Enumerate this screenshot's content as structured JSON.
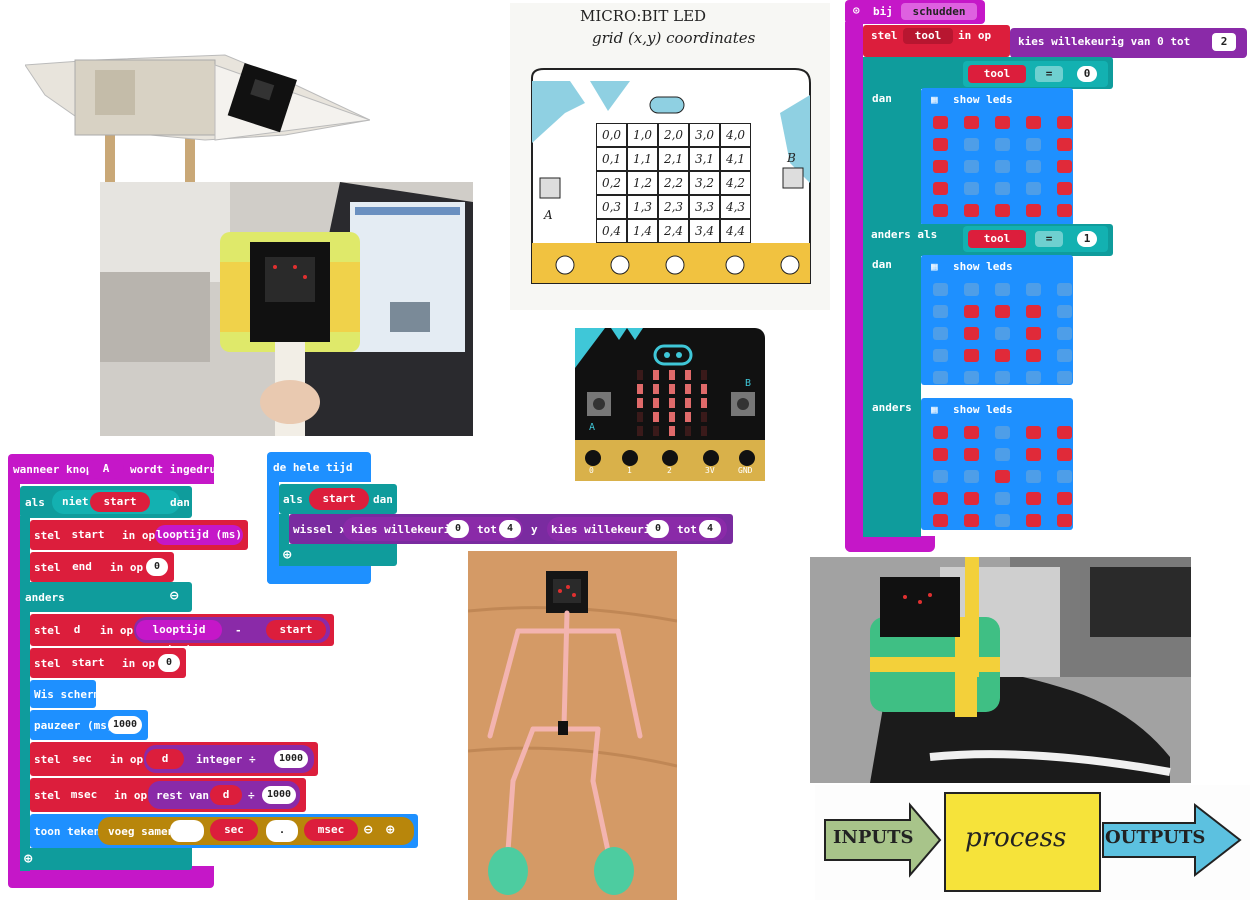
{
  "sketch_grid": {
    "title_line1": "MICRO:BIT LED",
    "title_line2": "grid (x,y) coordinates",
    "cells": [
      [
        "0,0",
        "1,0",
        "2,0",
        "3,0",
        "4,0"
      ],
      [
        "0,1",
        "1,1",
        "2,1",
        "3,1",
        "4,1"
      ],
      [
        "0,2",
        "1,2",
        "2,2",
        "3,2",
        "4,2"
      ],
      [
        "0,3",
        "1,3",
        "2,3",
        "3,3",
        "4,3"
      ],
      [
        "0,4",
        "1,4",
        "2,4",
        "3,4",
        "4,4"
      ]
    ],
    "btn_a": "A",
    "btn_b": "B"
  },
  "microbit_board": {
    "btn_a": "A",
    "btn_b": "B",
    "pins": [
      "0",
      "1",
      "2",
      "3V",
      "GND"
    ]
  },
  "shake_block": {
    "event": "bij",
    "event_dropdown": "schudden",
    "set_label": "stel",
    "var": "tool",
    "in_op": "in op",
    "random_label": "kies willekeurig van 0 tot",
    "random_max": "2",
    "if_label": "als",
    "then_label": "dan",
    "elseif_label": "anders als",
    "else_label": "anders",
    "cmp_op": "=",
    "cmp_val_0": "0",
    "cmp_val_1": "1",
    "show_leds": "show leds",
    "grid_1": [
      [
        1,
        1,
        1,
        1,
        1
      ],
      [
        1,
        0,
        0,
        0,
        1
      ],
      [
        1,
        0,
        0,
        0,
        1
      ],
      [
        1,
        0,
        0,
        0,
        1
      ],
      [
        1,
        1,
        1,
        1,
        1
      ]
    ],
    "grid_2": [
      [
        0,
        0,
        0,
        0,
        0
      ],
      [
        0,
        1,
        1,
        1,
        0
      ],
      [
        0,
        1,
        0,
        1,
        0
      ],
      [
        0,
        1,
        1,
        1,
        0
      ],
      [
        0,
        0,
        0,
        0,
        0
      ]
    ],
    "grid_3": [
      [
        1,
        1,
        0,
        1,
        1
      ],
      [
        1,
        1,
        0,
        1,
        1
      ],
      [
        0,
        0,
        1,
        0,
        0
      ],
      [
        1,
        1,
        0,
        1,
        1
      ],
      [
        1,
        1,
        0,
        1,
        1
      ]
    ]
  },
  "button_block": {
    "when": "wanneer knop",
    "button": "A",
    "pressed": "wordt ingedrukt",
    "if_label": "als",
    "not_label": "niet",
    "start": "start",
    "then_label": "dan",
    "set_label": "stel",
    "in_op": "in op",
    "runtime": "looptijd (ms)",
    "end": "end",
    "zero": "0",
    "else_label": "anders",
    "d": "d",
    "minus": "-",
    "clear": "Wis scherm",
    "pause": "pauzeer (ms)",
    "pause_val": "1000",
    "sec": "sec",
    "integer_div": "integer ÷",
    "thousand": "1000",
    "msec": "msec",
    "remainder": "rest van",
    "div": "÷",
    "show_string": "toon tekens",
    "join": "voeg samen",
    "dot": "."
  },
  "forever_block": {
    "title": "de hele tijd",
    "if_label": "als",
    "start": "start",
    "then_label": "dan",
    "toggle": "wissel x",
    "random": "kies willekeurig",
    "from": "0",
    "to_label": "tot",
    "to": "4",
    "y_label": "y"
  },
  "ipo": {
    "inputs": "INPUTS",
    "process": "process",
    "outputs": "OUTPUTS"
  },
  "colors": {
    "event_magenta": "#c517c8",
    "logic_teal": "#0f9c9c",
    "variable_red": "#dc1e3c",
    "basic_blue": "#1e90ff",
    "led_purple": "#7a2ba0",
    "led_on": "#e02a39",
    "led_off": "#4e9ee8"
  }
}
